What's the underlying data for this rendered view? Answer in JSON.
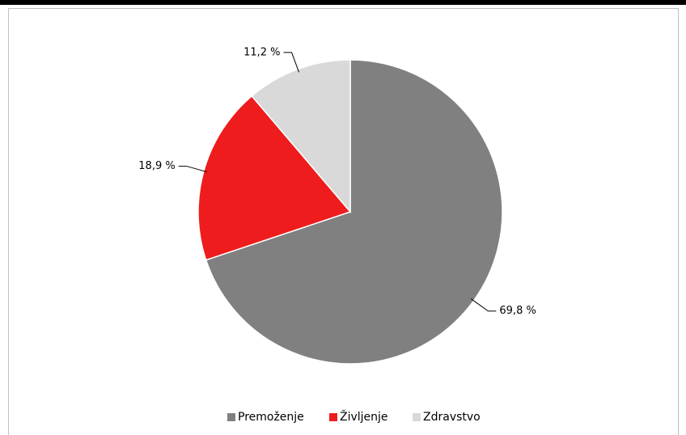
{
  "chart_data": {
    "type": "pie",
    "categories": [
      "Premoženje",
      "Življenje",
      "Zdravstvo"
    ],
    "values": [
      69.8,
      18.9,
      11.2
    ],
    "value_labels": [
      "69,8 %",
      "18,9 %",
      "11,2 %"
    ],
    "colors": [
      "#808080",
      "#ee1c1c",
      "#d9d9d9"
    ],
    "legend": "bottom"
  }
}
